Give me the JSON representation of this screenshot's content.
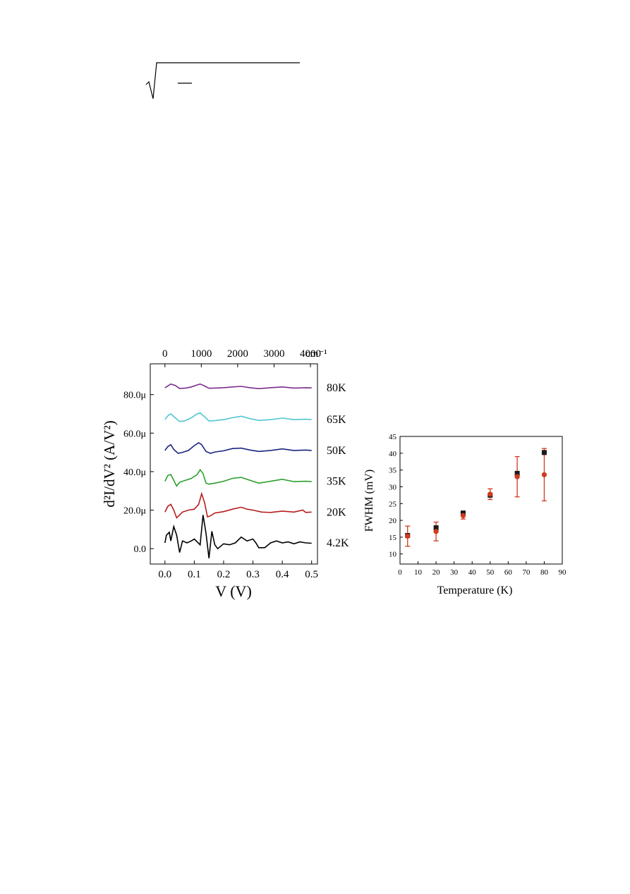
{
  "chart_data": [
    {
      "type": "line",
      "xlabel": "V (V)",
      "ylabel": "d²I/dV² (A/V²)",
      "xlim": [
        -0.05,
        0.52
      ],
      "ylim": [
        -8,
        96
      ],
      "x_ticks": [
        0.0,
        0.1,
        0.2,
        0.3,
        0.4,
        0.5
      ],
      "x_tick_labels": [
        "0.0",
        "0.1",
        "0.2",
        "0.3",
        "0.4",
        "0.5"
      ],
      "y_ticks": [
        0,
        20,
        40,
        60,
        80
      ],
      "y_tick_labels": [
        "0.0",
        "20.0μ",
        "40.0μ",
        "60.0μ",
        "80.0μ"
      ],
      "top_axis": {
        "ticks": [
          0,
          1000,
          2000,
          3000,
          4000
        ],
        "tick_labels": [
          "0",
          "1000",
          "2000",
          "3000",
          "4000"
        ],
        "unit": "cm⁻¹"
      },
      "series": [
        {
          "name": "80K",
          "color": "#7b2d8e",
          "offset": 83.5,
          "x": [
            0,
            0.01,
            0.02,
            0.035,
            0.05,
            0.07,
            0.09,
            0.11,
            0.12,
            0.135,
            0.15,
            0.17,
            0.2,
            0.23,
            0.26,
            0.29,
            0.32,
            0.36,
            0.4,
            0.44,
            0.48,
            0.5
          ],
          "y": [
            83.5,
            84.5,
            85.5,
            84.8,
            83.2,
            83.4,
            84.0,
            85.0,
            85.5,
            84.5,
            83.3,
            83.4,
            83.6,
            84.0,
            84.3,
            83.6,
            83.1,
            83.6,
            84.0,
            83.4,
            83.6,
            83.5
          ]
        },
        {
          "name": "65K",
          "color": "#4fc6d0",
          "offset": 67,
          "x": [
            0,
            0.01,
            0.02,
            0.035,
            0.05,
            0.07,
            0.09,
            0.11,
            0.12,
            0.135,
            0.15,
            0.17,
            0.2,
            0.23,
            0.26,
            0.29,
            0.32,
            0.36,
            0.4,
            0.44,
            0.48,
            0.5
          ],
          "y": [
            67.0,
            69.0,
            70.0,
            68.0,
            66.0,
            66.5,
            68.0,
            70.0,
            70.5,
            68.5,
            66.3,
            66.5,
            67.0,
            68.0,
            68.8,
            67.5,
            66.6,
            67.0,
            67.8,
            67.0,
            67.2,
            67.0
          ]
        },
        {
          "name": "50K",
          "color": "#1a237e",
          "offset": 51,
          "x": [
            0,
            0.01,
            0.02,
            0.03,
            0.045,
            0.06,
            0.08,
            0.1,
            0.115,
            0.125,
            0.14,
            0.155,
            0.17,
            0.2,
            0.23,
            0.26,
            0.29,
            0.32,
            0.36,
            0.4,
            0.44,
            0.48,
            0.5
          ],
          "y": [
            51.0,
            53.0,
            54.0,
            51.5,
            49.5,
            50.0,
            51.0,
            53.5,
            55.0,
            54.0,
            50.5,
            49.5,
            50.2,
            50.8,
            52.0,
            52.2,
            51.2,
            50.5,
            51.0,
            51.8,
            51.0,
            51.2,
            51.0
          ]
        },
        {
          "name": "35K",
          "color": "#2ca02c",
          "offset": 35,
          "x": [
            0,
            0.01,
            0.02,
            0.03,
            0.04,
            0.05,
            0.07,
            0.09,
            0.11,
            0.12,
            0.13,
            0.14,
            0.15,
            0.17,
            0.2,
            0.23,
            0.26,
            0.29,
            0.32,
            0.36,
            0.4,
            0.44,
            0.48,
            0.5
          ],
          "y": [
            35.0,
            38.0,
            38.5,
            35.5,
            32.5,
            34.5,
            35.5,
            36.5,
            38.5,
            41.0,
            39.0,
            34.0,
            33.5,
            34.0,
            35.0,
            36.5,
            37.0,
            35.5,
            34.0,
            35.0,
            36.0,
            34.8,
            35.0,
            34.8
          ]
        },
        {
          "name": "20K",
          "color": "#b71c1c",
          "offset": 19,
          "x": [
            0,
            0.01,
            0.02,
            0.03,
            0.04,
            0.05,
            0.06,
            0.08,
            0.1,
            0.115,
            0.125,
            0.135,
            0.145,
            0.155,
            0.17,
            0.2,
            0.23,
            0.26,
            0.28,
            0.3,
            0.33,
            0.36,
            0.4,
            0.44,
            0.47,
            0.48,
            0.5
          ],
          "y": [
            19.0,
            22.0,
            23.0,
            20.0,
            16.0,
            17.5,
            19.0,
            20.0,
            20.5,
            23.0,
            28.5,
            24.0,
            16.5,
            17.0,
            18.5,
            19.2,
            20.5,
            21.5,
            20.5,
            20.0,
            19.0,
            18.8,
            19.5,
            19.0,
            20.0,
            18.8,
            19.0
          ]
        },
        {
          "name": "4.2K",
          "color": "#000000",
          "offset": 3,
          "x": [
            0,
            0.005,
            0.015,
            0.02,
            0.03,
            0.04,
            0.05,
            0.06,
            0.075,
            0.09,
            0.1,
            0.11,
            0.12,
            0.13,
            0.14,
            0.15,
            0.16,
            0.17,
            0.18,
            0.2,
            0.22,
            0.24,
            0.26,
            0.27,
            0.28,
            0.3,
            0.31,
            0.32,
            0.34,
            0.36,
            0.38,
            0.4,
            0.42,
            0.44,
            0.46,
            0.48,
            0.5
          ],
          "y": [
            3.0,
            7.0,
            8.5,
            4.0,
            11.5,
            7.0,
            -2.0,
            4.0,
            3.0,
            4.0,
            5.0,
            3.5,
            2.0,
            17.5,
            8.0,
            -5.0,
            9.0,
            2.0,
            0.0,
            2.5,
            2.0,
            3.0,
            6.0,
            5.0,
            4.0,
            5.0,
            3.0,
            0.5,
            0.5,
            3.0,
            4.0,
            3.0,
            3.5,
            2.5,
            3.5,
            3.0,
            2.8
          ]
        }
      ]
    },
    {
      "type": "scatter",
      "xlabel": "Temperature (K)",
      "ylabel": "FWHM (mV)",
      "xlim": [
        0,
        90
      ],
      "ylim": [
        7,
        45
      ],
      "x_ticks": [
        0,
        10,
        20,
        30,
        40,
        50,
        60,
        70,
        80,
        90
      ],
      "y_ticks": [
        10,
        15,
        20,
        25,
        30,
        35,
        40,
        45
      ],
      "series": [
        {
          "marker": "square",
          "color": "#1a1a1a",
          "x": [
            4.2,
            20,
            35,
            50,
            65,
            80
          ],
          "y": [
            15.5,
            17.8,
            22.2,
            27.5,
            34.0,
            40.2
          ]
        },
        {
          "marker": "circle",
          "color": "#d03a1f",
          "x": [
            4.2,
            20,
            35,
            50,
            65,
            80
          ],
          "y": [
            15.3,
            16.7,
            21.4,
            27.8,
            33.0,
            33.6
          ],
          "err": [
            3.0,
            2.8,
            1.0,
            1.6,
            6.0,
            7.8
          ]
        }
      ]
    }
  ]
}
